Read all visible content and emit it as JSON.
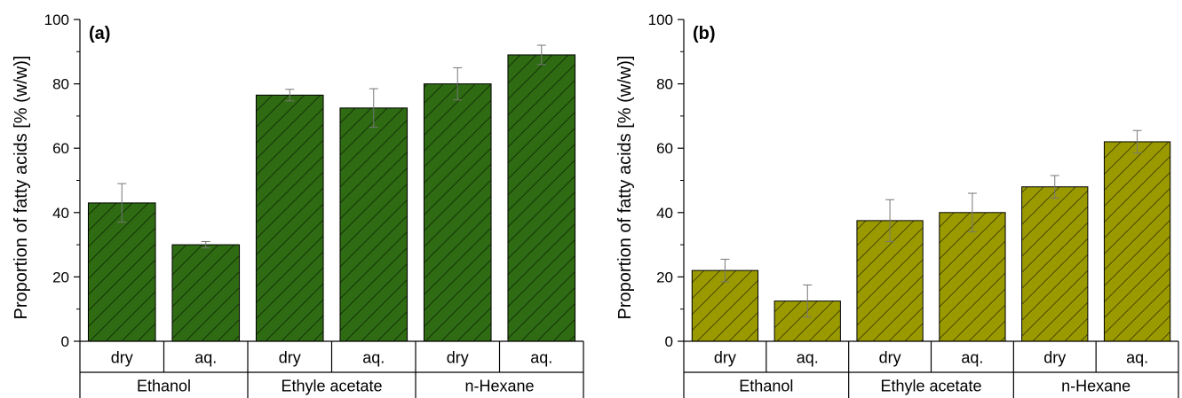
{
  "chart_data": [
    {
      "type": "bar",
      "panel_label": "(a)",
      "ylabel": "Proportion of fatty acids [% (w/w)]",
      "ylim": [
        0,
        100
      ],
      "yticks": [
        0,
        20,
        40,
        60,
        80,
        100
      ],
      "groups": [
        "Ethanol",
        "Ethyle acetate",
        "n-Hexane"
      ],
      "categories": [
        "dry",
        "aq.",
        "dry",
        "aq.",
        "dry",
        "aq."
      ],
      "values": [
        43,
        30,
        76.5,
        72.5,
        80,
        89
      ],
      "errors": [
        6,
        1,
        1.8,
        6,
        5,
        3
      ],
      "color": "#2e6b12",
      "pattern": "diagonal-hatch",
      "grid": false
    },
    {
      "type": "bar",
      "panel_label": "(b)",
      "ylabel": "Proportion of fatty acids [% (w/w)]",
      "ylim": [
        0,
        100
      ],
      "yticks": [
        0,
        20,
        40,
        60,
        80,
        100
      ],
      "groups": [
        "Ethanol",
        "Ethyle acetate",
        "n-Hexane"
      ],
      "categories": [
        "dry",
        "aq.",
        "dry",
        "aq.",
        "dry",
        "aq."
      ],
      "values": [
        22,
        12.5,
        37.5,
        40,
        48,
        62
      ],
      "errors": [
        3.5,
        5,
        6.5,
        6,
        3.5,
        3.5
      ],
      "color": "#9a9a00",
      "pattern": "diagonal-hatch",
      "grid": false
    }
  ]
}
